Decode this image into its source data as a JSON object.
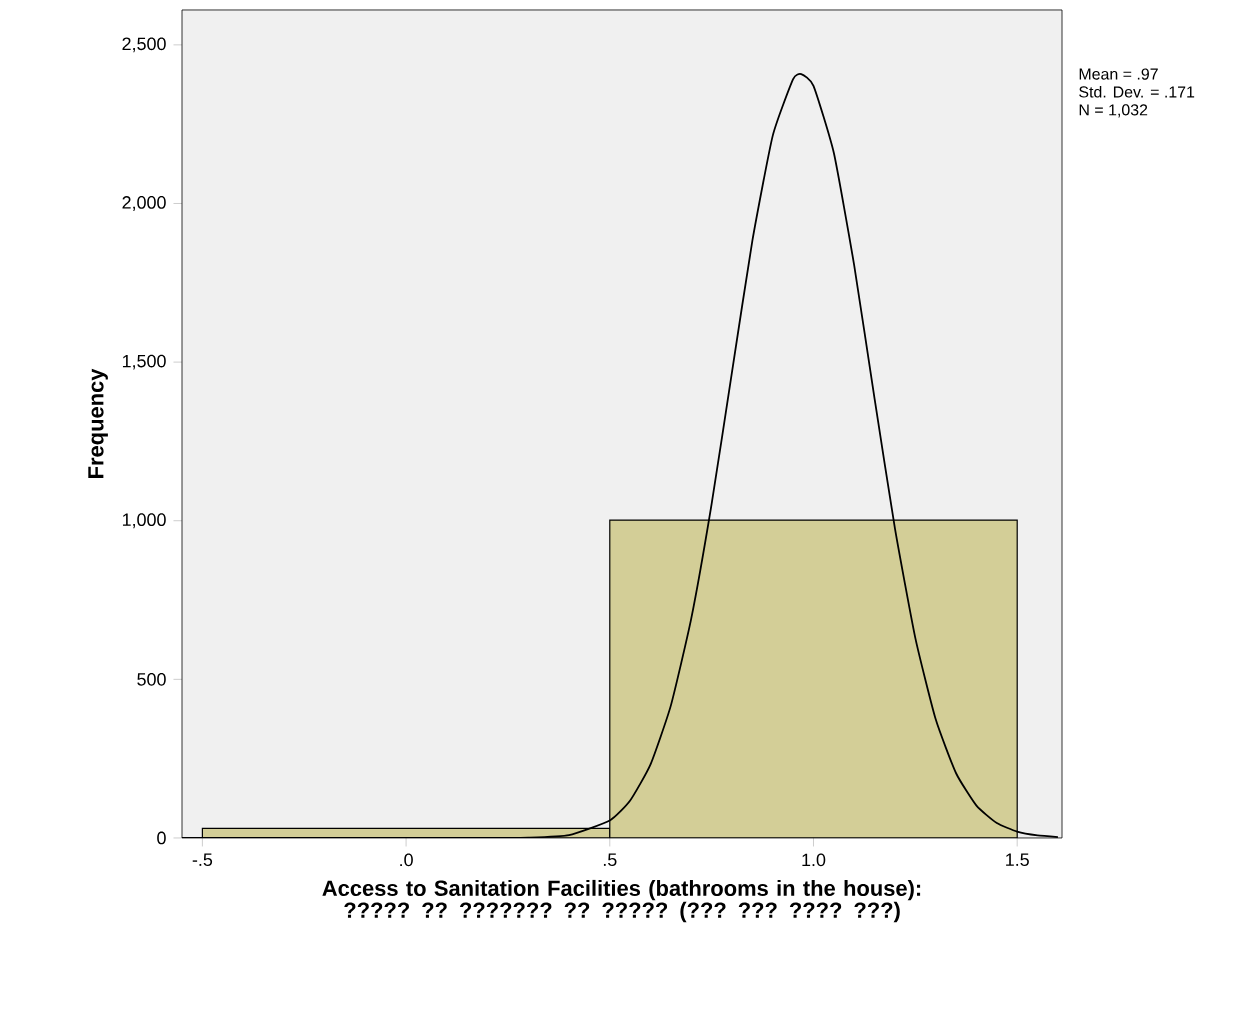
{
  "chart_data": {
    "type": "histogram",
    "xlabel": "Access to Sanitation Facilities (bathrooms in the house):  ????? ?? ??????? ?? ????? (??? ??? ???? ???)",
    "ylabel": "Frequency",
    "bins": [
      -0.5,
      0.5,
      1.5
    ],
    "values": [
      30,
      1002
    ],
    "color": "#d3ce97",
    "series": [
      {
        "type": "line",
        "color": "#000000",
        "x": [
          -0.55,
          0.2,
          0.3,
          0.4,
          0.5,
          0.55,
          0.6,
          0.65,
          0.7,
          0.75,
          0.8,
          0.85,
          0.9,
          0.95,
          0.97,
          1.0,
          1.05,
          1.1,
          1.15,
          1.2,
          1.25,
          1.3,
          1.35,
          1.4,
          1.45,
          1.5,
          1.55,
          1.6
        ],
        "values": [
          0,
          0,
          1,
          9,
          55,
          118,
          232,
          418,
          692,
          1053,
          1469,
          1883,
          2214,
          2392,
          2408,
          2371,
          2159,
          1804,
          1384,
          975,
          630,
          374,
          204,
          102,
          47,
          20,
          8,
          3
        ]
      }
    ],
    "xlim": [
      -0.55,
      1.61
    ],
    "ylim": [
      0,
      2610
    ],
    "xticks": [
      {
        "value": -0.5,
        "label": "-.5"
      },
      {
        "value": 0,
        "label": ".0"
      },
      {
        "value": 0.5,
        "label": ".5"
      },
      {
        "value": 1.0,
        "label": "1.0"
      },
      {
        "value": 1.5,
        "label": "1.5"
      }
    ],
    "yticks": [
      0,
      {
        "value": 500,
        "label": "500"
      },
      {
        "value": 1000,
        "label": "1,000"
      },
      {
        "value": 1500,
        "label": "1,500"
      },
      {
        "value": 2000,
        "label": "2,000"
      },
      {
        "value": 2500,
        "label": "2,500"
      }
    ],
    "annotations": [
      "Mean = .97",
      "Std. Dev. = .171",
      "N = 1,032"
    ],
    "grid": false,
    "marker": "none",
    "line_style": "solid"
  }
}
